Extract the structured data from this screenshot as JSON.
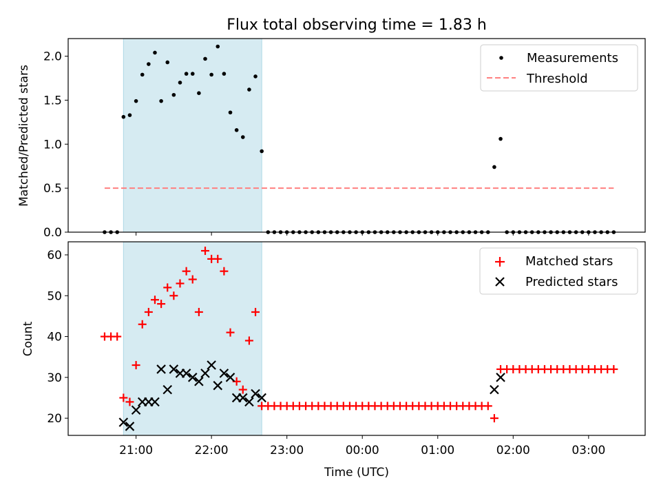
{
  "chart_data": {
    "title": "Flux total observing time = 1.83 h",
    "xlabel": "Time (UTC)",
    "x_ticks": [
      "21:00",
      "22:00",
      "23:00",
      "00:00",
      "01:00",
      "02:00",
      "03:00"
    ],
    "x_range_hours": [
      20.1,
      27.75
    ],
    "highlight_span": [
      "20:50",
      "22:40"
    ],
    "panels": [
      {
        "type": "scatter",
        "ylabel": "Matched/Predicted stars",
        "ylim": [
          0,
          2.2
        ],
        "yticks": [
          "0.0",
          "0.5",
          "1.0",
          "1.5",
          "2.0"
        ],
        "legend_position": "top-right",
        "series": [
          {
            "name": "Measurements",
            "marker": "dot",
            "color": "#000000",
            "points": [
              [
                "20:35",
                0.0
              ],
              [
                "20:40",
                0.0
              ],
              [
                "20:45",
                0.0
              ],
              [
                "20:50",
                1.31
              ],
              [
                "20:55",
                1.33
              ],
              [
                "21:00",
                1.49
              ],
              [
                "21:05",
                1.79
              ],
              [
                "21:10",
                1.91
              ],
              [
                "21:15",
                2.04
              ],
              [
                "21:20",
                1.49
              ],
              [
                "21:25",
                1.93
              ],
              [
                "21:30",
                1.56
              ],
              [
                "21:35",
                1.7
              ],
              [
                "21:40",
                1.8
              ],
              [
                "21:45",
                1.8
              ],
              [
                "21:50",
                1.58
              ],
              [
                "21:55",
                1.97
              ],
              [
                "22:00",
                1.79
              ],
              [
                "22:05",
                2.11
              ],
              [
                "22:10",
                1.8
              ],
              [
                "22:15",
                1.36
              ],
              [
                "22:20",
                1.16
              ],
              [
                "22:25",
                1.08
              ],
              [
                "22:30",
                1.62
              ],
              [
                "22:35",
                1.77
              ],
              [
                "22:40",
                0.92
              ],
              [
                "22:45",
                0.0
              ],
              [
                "22:50",
                0.0
              ],
              [
                "22:55",
                0.0
              ],
              [
                "23:00",
                0.0
              ],
              [
                "23:05",
                0.0
              ],
              [
                "23:10",
                0.0
              ],
              [
                "23:15",
                0.0
              ],
              [
                "23:20",
                0.0
              ],
              [
                "23:25",
                0.0
              ],
              [
                "23:30",
                0.0
              ],
              [
                "23:35",
                0.0
              ],
              [
                "23:40",
                0.0
              ],
              [
                "23:45",
                0.0
              ],
              [
                "23:50",
                0.0
              ],
              [
                "23:55",
                0.0
              ],
              [
                "00:00",
                0.0
              ],
              [
                "00:05",
                0.0
              ],
              [
                "00:10",
                0.0
              ],
              [
                "00:15",
                0.0
              ],
              [
                "00:20",
                0.0
              ],
              [
                "00:25",
                0.0
              ],
              [
                "00:30",
                0.0
              ],
              [
                "00:35",
                0.0
              ],
              [
                "00:40",
                0.0
              ],
              [
                "00:45",
                0.0
              ],
              [
                "00:50",
                0.0
              ],
              [
                "00:55",
                0.0
              ],
              [
                "01:00",
                0.0
              ],
              [
                "01:05",
                0.0
              ],
              [
                "01:10",
                0.0
              ],
              [
                "01:15",
                0.0
              ],
              [
                "01:20",
                0.0
              ],
              [
                "01:25",
                0.0
              ],
              [
                "01:30",
                0.0
              ],
              [
                "01:35",
                0.0
              ],
              [
                "01:40",
                0.0
              ],
              [
                "01:45",
                0.74
              ],
              [
                "01:50",
                1.06
              ],
              [
                "01:55",
                0.0
              ],
              [
                "02:00",
                0.0
              ],
              [
                "02:05",
                0.0
              ],
              [
                "02:10",
                0.0
              ],
              [
                "02:15",
                0.0
              ],
              [
                "02:20",
                0.0
              ],
              [
                "02:25",
                0.0
              ],
              [
                "02:30",
                0.0
              ],
              [
                "02:35",
                0.0
              ],
              [
                "02:40",
                0.0
              ],
              [
                "02:45",
                0.0
              ],
              [
                "02:50",
                0.0
              ],
              [
                "02:55",
                0.0
              ],
              [
                "03:00",
                0.0
              ],
              [
                "03:05",
                0.0
              ],
              [
                "03:10",
                0.0
              ],
              [
                "03:15",
                0.0
              ],
              [
                "03:20",
                0.0
              ]
            ]
          },
          {
            "name": "Threshold",
            "marker": "dashed-line",
            "color": "#ff7f7f",
            "points": [
              [
                "20:35",
                0.5
              ],
              [
                "03:20",
                0.5
              ]
            ]
          }
        ]
      },
      {
        "type": "scatter",
        "ylabel": "Count",
        "ylim": [
          15.8,
          63.2
        ],
        "yticks": [
          "20",
          "30",
          "40",
          "50",
          "60"
        ],
        "legend_position": "top-right",
        "series": [
          {
            "name": "Matched stars",
            "marker": "plus",
            "color": "#ff0000",
            "points": [
              [
                "20:35",
                40
              ],
              [
                "20:40",
                40
              ],
              [
                "20:45",
                40
              ],
              [
                "20:50",
                25
              ],
              [
                "20:55",
                24
              ],
              [
                "21:00",
                33
              ],
              [
                "21:05",
                43
              ],
              [
                "21:10",
                46
              ],
              [
                "21:15",
                49
              ],
              [
                "21:20",
                48
              ],
              [
                "21:25",
                52
              ],
              [
                "21:30",
                50
              ],
              [
                "21:35",
                53
              ],
              [
                "21:40",
                56
              ],
              [
                "21:45",
                54
              ],
              [
                "21:50",
                46
              ],
              [
                "21:55",
                61
              ],
              [
                "22:00",
                59
              ],
              [
                "22:05",
                59
              ],
              [
                "22:10",
                56
              ],
              [
                "22:15",
                41
              ],
              [
                "22:20",
                29
              ],
              [
                "22:25",
                27
              ],
              [
                "22:30",
                39
              ],
              [
                "22:35",
                46
              ],
              [
                "22:40",
                23
              ],
              [
                "22:45",
                23
              ],
              [
                "22:50",
                23
              ],
              [
                "22:55",
                23
              ],
              [
                "23:00",
                23
              ],
              [
                "23:05",
                23
              ],
              [
                "23:10",
                23
              ],
              [
                "23:15",
                23
              ],
              [
                "23:20",
                23
              ],
              [
                "23:25",
                23
              ],
              [
                "23:30",
                23
              ],
              [
                "23:35",
                23
              ],
              [
                "23:40",
                23
              ],
              [
                "23:45",
                23
              ],
              [
                "23:50",
                23
              ],
              [
                "23:55",
                23
              ],
              [
                "00:00",
                23
              ],
              [
                "00:05",
                23
              ],
              [
                "00:10",
                23
              ],
              [
                "00:15",
                23
              ],
              [
                "00:20",
                23
              ],
              [
                "00:25",
                23
              ],
              [
                "00:30",
                23
              ],
              [
                "00:35",
                23
              ],
              [
                "00:40",
                23
              ],
              [
                "00:45",
                23
              ],
              [
                "00:50",
                23
              ],
              [
                "00:55",
                23
              ],
              [
                "01:00",
                23
              ],
              [
                "01:05",
                23
              ],
              [
                "01:10",
                23
              ],
              [
                "01:15",
                23
              ],
              [
                "01:20",
                23
              ],
              [
                "01:25",
                23
              ],
              [
                "01:30",
                23
              ],
              [
                "01:35",
                23
              ],
              [
                "01:40",
                23
              ],
              [
                "01:45",
                20
              ],
              [
                "01:50",
                32
              ],
              [
                "01:55",
                32
              ],
              [
                "02:00",
                32
              ],
              [
                "02:05",
                32
              ],
              [
                "02:10",
                32
              ],
              [
                "02:15",
                32
              ],
              [
                "02:20",
                32
              ],
              [
                "02:25",
                32
              ],
              [
                "02:30",
                32
              ],
              [
                "02:35",
                32
              ],
              [
                "02:40",
                32
              ],
              [
                "02:45",
                32
              ],
              [
                "02:50",
                32
              ],
              [
                "02:55",
                32
              ],
              [
                "03:00",
                32
              ],
              [
                "03:05",
                32
              ],
              [
                "03:10",
                32
              ],
              [
                "03:15",
                32
              ],
              [
                "03:20",
                32
              ]
            ]
          },
          {
            "name": "Predicted stars",
            "marker": "x",
            "color": "#000000",
            "points": [
              [
                "20:50",
                19
              ],
              [
                "20:55",
                18
              ],
              [
                "21:00",
                22
              ],
              [
                "21:05",
                24
              ],
              [
                "21:10",
                24
              ],
              [
                "21:15",
                24
              ],
              [
                "21:20",
                32
              ],
              [
                "21:25",
                27
              ],
              [
                "21:30",
                32
              ],
              [
                "21:35",
                31
              ],
              [
                "21:40",
                31
              ],
              [
                "21:45",
                30
              ],
              [
                "21:50",
                29
              ],
              [
                "21:55",
                31
              ],
              [
                "22:00",
                33
              ],
              [
                "22:05",
                28
              ],
              [
                "22:10",
                31
              ],
              [
                "22:15",
                30
              ],
              [
                "22:20",
                25
              ],
              [
                "22:25",
                25
              ],
              [
                "22:30",
                24
              ],
              [
                "22:35",
                26
              ],
              [
                "22:40",
                25
              ],
              [
                "01:45",
                27
              ],
              [
                "01:50",
                30
              ]
            ]
          }
        ]
      }
    ]
  }
}
